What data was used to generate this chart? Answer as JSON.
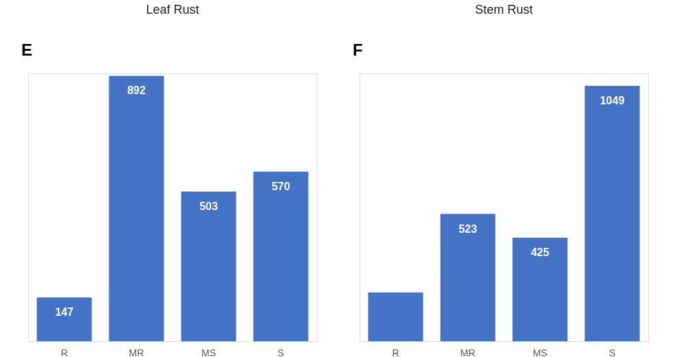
{
  "chart_data": [
    {
      "type": "bar",
      "title": "Leaf Rust",
      "annotations": [
        "E"
      ],
      "categories": [
        "R",
        "MR",
        "MS",
        "S"
      ],
      "values": [
        147,
        892,
        503,
        570
      ],
      "color": "#4472c4",
      "data_labels": true,
      "grid": false,
      "tick_labels": "x"
    },
    {
      "type": "bar",
      "title": "Stem Rust",
      "annotations": [
        "F"
      ],
      "categories": [
        "R",
        "MR",
        "MS",
        "S"
      ],
      "values": [
        200,
        523,
        425,
        1049
      ],
      "value_labels": [
        null,
        "523",
        "425",
        "1049"
      ],
      "color": "#4472c4",
      "grid": false,
      "tick_labels": "x"
    }
  ]
}
